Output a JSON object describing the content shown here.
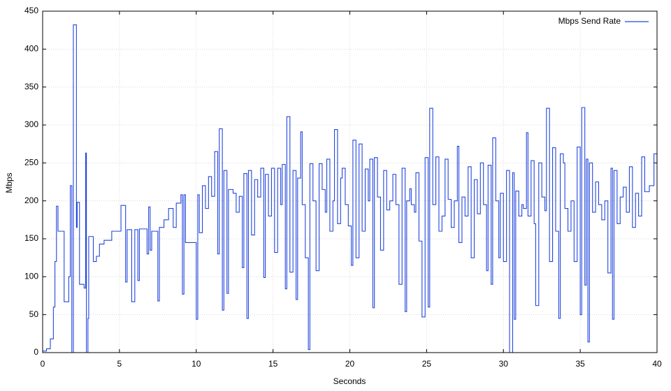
{
  "chart_data": {
    "type": "line",
    "step": "post",
    "x_label": "Seconds",
    "y_label": "Mbps",
    "grid": true,
    "legend": "upper right",
    "xlim": [
      0,
      40
    ],
    "ylim": [
      0,
      450
    ],
    "xticks": [
      0,
      5,
      10,
      15,
      20,
      25,
      30,
      35,
      40
    ],
    "yticks": [
      0,
      50,
      100,
      150,
      200,
      250,
      300,
      350,
      400,
      450
    ],
    "x": [
      0,
      0.25,
      0.5,
      0.7,
      0.8,
      0.9,
      1.0,
      1.4,
      1.7,
      1.8,
      1.9,
      2.0,
      2.2,
      2.25,
      2.4,
      2.7,
      2.8,
      2.85,
      2.95,
      3.0,
      3.3,
      3.5,
      3.7,
      4.0,
      4.5,
      5.0,
      5.1,
      5.4,
      5.5,
      5.8,
      6.0,
      6.2,
      6.3,
      6.8,
      6.9,
      7.0,
      7.1,
      7.5,
      7.6,
      7.9,
      8.2,
      8.5,
      8.7,
      9.0,
      9.1,
      9.2,
      9.3,
      9.9,
      10.0,
      10.1,
      10.2,
      10.4,
      10.6,
      10.8,
      11.0,
      11.2,
      11.4,
      11.5,
      11.7,
      11.8,
      12.0,
      12.1,
      12.4,
      12.6,
      12.8,
      13.0,
      13.1,
      13.3,
      13.4,
      13.6,
      13.8,
      14.0,
      14.2,
      14.4,
      14.5,
      14.7,
      14.9,
      15.1,
      15.3,
      15.5,
      15.6,
      15.8,
      15.9,
      16.1,
      16.3,
      16.5,
      16.6,
      16.8,
      16.9,
      17.1,
      17.3,
      17.4,
      17.6,
      17.8,
      18.0,
      18.2,
      18.4,
      18.5,
      18.7,
      18.9,
      19.0,
      19.2,
      19.4,
      19.5,
      19.7,
      19.9,
      20.1,
      20.2,
      20.4,
      20.6,
      20.8,
      21.0,
      21.2,
      21.3,
      21.5,
      21.6,
      21.8,
      22.0,
      22.2,
      22.4,
      22.6,
      22.8,
      23.0,
      23.2,
      23.4,
      23.6,
      23.7,
      23.9,
      24.0,
      24.2,
      24.3,
      24.5,
      24.7,
      24.9,
      25.1,
      25.2,
      25.4,
      25.6,
      25.8,
      26.0,
      26.2,
      26.4,
      26.6,
      26.8,
      27.0,
      27.1,
      27.3,
      27.5,
      27.7,
      27.9,
      28.1,
      28.3,
      28.5,
      28.7,
      28.9,
      29.0,
      29.2,
      29.3,
      29.5,
      29.7,
      29.8,
      30.0,
      30.2,
      30.4,
      30.6,
      30.7,
      30.8,
      31.0,
      31.2,
      31.3,
      31.5,
      31.6,
      31.8,
      32.0,
      32.1,
      32.3,
      32.5,
      32.7,
      32.8,
      33.0,
      33.2,
      33.4,
      33.6,
      33.7,
      33.9,
      34.0,
      34.2,
      34.4,
      34.6,
      34.8,
      35.0,
      35.1,
      35.3,
      35.4,
      35.5,
      35.6,
      35.8,
      36.0,
      36.2,
      36.4,
      36.6,
      36.8,
      37.0,
      37.1,
      37.2,
      37.4,
      37.6,
      37.8,
      38.0,
      38.2,
      38.4,
      38.6,
      38.8,
      39.0,
      39.2,
      39.5,
      39.8,
      40
    ],
    "series": [
      {
        "name": "Mbps Send Rate",
        "color": "#2347dc",
        "values": [
          2,
          5,
          18,
          60,
          120,
          193,
          160,
          67,
          100,
          220,
          0,
          432,
          165,
          198,
          90,
          85,
          263,
          0,
          45,
          153,
          120,
          127,
          143,
          148,
          160,
          160,
          194,
          93,
          162,
          67,
          162,
          95,
          163,
          130,
          192,
          135,
          160,
          68,
          165,
          175,
          190,
          165,
          197,
          208,
          77,
          208,
          145,
          145,
          44,
          208,
          158,
          220,
          190,
          232,
          206,
          265,
          130,
          295,
          56,
          240,
          78,
          215,
          210,
          185,
          206,
          112,
          236,
          45,
          240,
          155,
          228,
          205,
          243,
          99,
          235,
          180,
          243,
          132,
          243,
          195,
          248,
          84,
          311,
          106,
          240,
          70,
          230,
          291,
          195,
          125,
          4,
          249,
          200,
          108,
          249,
          215,
          185,
          255,
          160,
          200,
          294,
          170,
          230,
          243,
          195,
          167,
          115,
          280,
          125,
          275,
          160,
          242,
          200,
          255,
          59,
          257,
          205,
          135,
          240,
          188,
          200,
          235,
          195,
          90,
          243,
          54,
          200,
          216,
          195,
          185,
          237,
          147,
          47,
          257,
          60,
          322,
          195,
          258,
          160,
          180,
          255,
          202,
          165,
          200,
          272,
          145,
          205,
          180,
          245,
          125,
          228,
          183,
          250,
          195,
          108,
          247,
          90,
          283,
          200,
          125,
          210,
          120,
          240,
          0,
          237,
          44,
          213,
          180,
          195,
          190,
          290,
          180,
          253,
          170,
          62,
          250,
          205,
          187,
          322,
          120,
          270,
          160,
          45,
          262,
          250,
          190,
          160,
          200,
          120,
          271,
          50,
          323,
          89,
          255,
          14,
          250,
          185,
          225,
          195,
          175,
          200,
          105,
          243,
          44,
          240,
          170,
          205,
          218,
          185,
          245,
          165,
          210,
          180,
          258,
          212,
          220,
          262,
          250
        ]
      }
    ]
  }
}
